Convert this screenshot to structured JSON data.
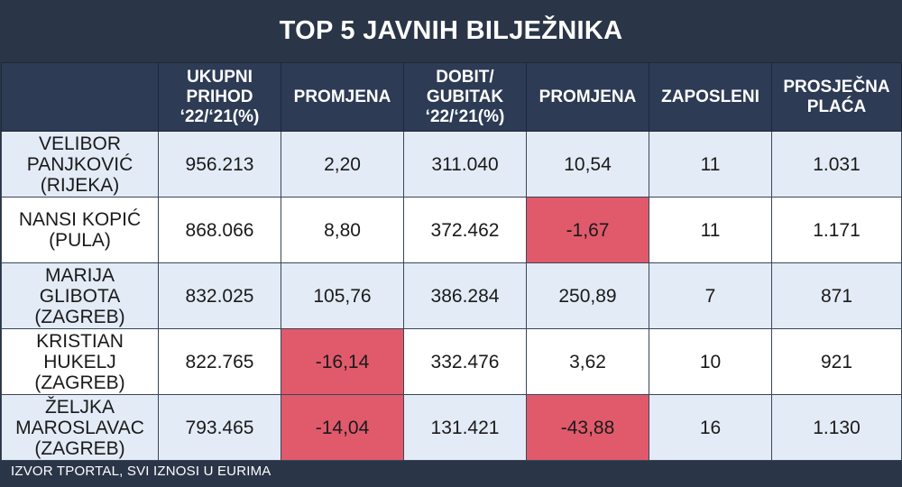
{
  "title": "TOP 5 JAVNIH BILJEŽNIKA",
  "headers": [
    "",
    "UKUPNI PRIHOD ‘22/‘21(%)",
    "PROMJENA",
    "DOBIT/ GUBITAK ‘22/‘21(%)",
    "PROMJENA",
    "ZAPOSLENI",
    "PROSJEČNA PLAĆA"
  ],
  "rows": [
    {
      "name": "VELIBOR PANJKOVIĆ (RIJEKA)",
      "prihod": "956.213",
      "promjena1": "2,20",
      "dobit": "311.040",
      "promjena2": "10,54",
      "zaposleni": "11",
      "placa": "1.031"
    },
    {
      "name": "NANSI KOPIĆ (PULA)",
      "prihod": "868.066",
      "promjena1": "8,80",
      "dobit": "372.462",
      "promjena2": "-1,67",
      "zaposleni": "11",
      "placa": "1.171"
    },
    {
      "name": "MARIJA GLIBOTA (ZAGREB)",
      "prihod": "832.025",
      "promjena1": "105,76",
      "dobit": "386.284",
      "promjena2": "250,89",
      "zaposleni": "7",
      "placa": "871"
    },
    {
      "name": "KRISTIAN HUKELJ (ZAGREB)",
      "prihod": "822.765",
      "promjena1": "-16,14",
      "dobit": "332.476",
      "promjena2": "3,62",
      "zaposleni": "10",
      "placa": "921"
    },
    {
      "name": "ŽELJKA MAROSLAVAC (ZAGREB)",
      "prihod": "793.465",
      "promjena1": "-14,04",
      "dobit": "131.421",
      "promjena2": "-43,88",
      "zaposleni": "16",
      "placa": "1.130"
    }
  ],
  "footer": "IZVOR TPORTAL, SVI IZNOSI U EURIMA",
  "colors": {
    "background": "#2a3547",
    "header": "#2d3b55",
    "row_alt": "#e3ebf6",
    "row_plain": "#ffffff",
    "negative_highlight": "#e05a6c"
  }
}
